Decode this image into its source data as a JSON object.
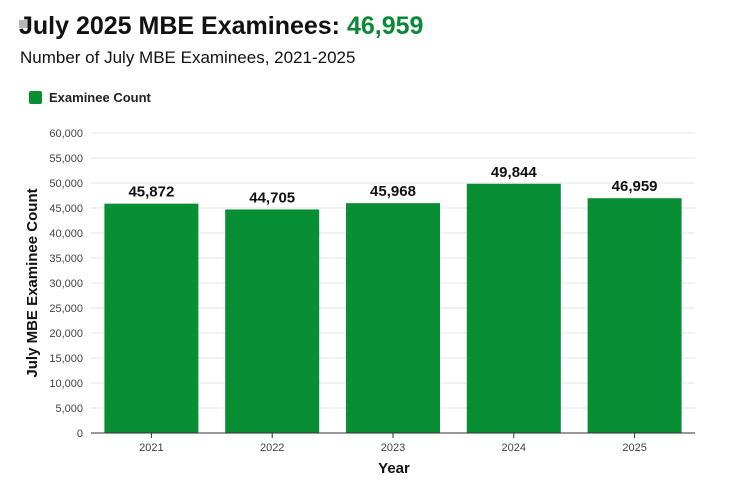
{
  "header": {
    "title_prefix": "July 2025 MBE Examinees: ",
    "title_value": "46,959",
    "subtitle": "Number of July MBE Examinees, 2021-2025"
  },
  "legend": {
    "label": "Examinee Count",
    "color": "#088e33"
  },
  "colors": {
    "bar": "#088e33",
    "accent": "#0a8a34",
    "grid": "#e6e6e6",
    "axis": "#333333"
  },
  "chart_data": {
    "type": "bar",
    "categories": [
      "2021",
      "2022",
      "2023",
      "2024",
      "2025"
    ],
    "series": [
      {
        "name": "Examinee Count",
        "values": [
          45872,
          44705,
          45968,
          49844,
          46959
        ]
      }
    ],
    "data_labels": [
      "45,872",
      "44,705",
      "45,968",
      "49,844",
      "46,959"
    ],
    "y_ticks": [
      0,
      5000,
      10000,
      15000,
      20000,
      25000,
      30000,
      35000,
      40000,
      45000,
      50000,
      55000,
      60000
    ],
    "y_tick_labels": [
      "0",
      "5,000",
      "10,000",
      "15,000",
      "20,000",
      "25,000",
      "30,000",
      "35,000",
      "40,000",
      "45,000",
      "50,000",
      "55,000",
      "60,000"
    ],
    "ylim": [
      0,
      60000
    ],
    "xlabel": "Year",
    "ylabel": "July MBE Examinee Count",
    "grid": true,
    "legend_position": "top-left"
  }
}
